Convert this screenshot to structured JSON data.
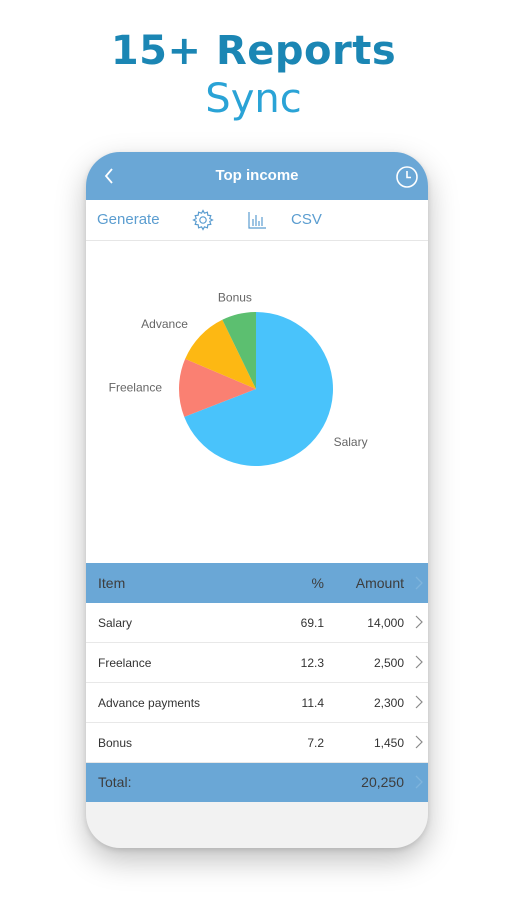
{
  "promo": {
    "title": "15+ Reports",
    "subtitle": "Sync"
  },
  "header": {
    "title": "Top income",
    "back_icon": "chevron-left-icon",
    "history_icon": "clock-icon"
  },
  "toolbar": {
    "generate": "Generate",
    "settings_icon": "gear-icon",
    "chart_icon": "bar-chart-icon",
    "csv": "CSV"
  },
  "colors": {
    "accent": "#6aa7d6",
    "promo_title": "#1b86b4",
    "promo_subtitle": "#2aa3d6",
    "link": "#5b9dd0"
  },
  "chart_data": {
    "type": "pie",
    "labels": [
      "Salary",
      "Freelance",
      "Advance",
      "Bonus"
    ],
    "values": [
      69.1,
      12.3,
      11.4,
      7.2
    ],
    "colors": [
      "#49c3fb",
      "#fa8072",
      "#fdb813",
      "#5cbf70"
    ]
  },
  "table": {
    "headers": {
      "item": "Item",
      "pct": "%",
      "amount": "Amount"
    },
    "rows": [
      {
        "item": "Salary",
        "pct": "69.1",
        "amount": "14,000"
      },
      {
        "item": "Freelance",
        "pct": "12.3",
        "amount": "2,500"
      },
      {
        "item": "Advance payments",
        "pct": "11.4",
        "amount": "2,300"
      },
      {
        "item": "Bonus",
        "pct": "7.2",
        "amount": "1,450"
      }
    ],
    "total": {
      "label": "Total:",
      "amount": "20,250"
    }
  }
}
